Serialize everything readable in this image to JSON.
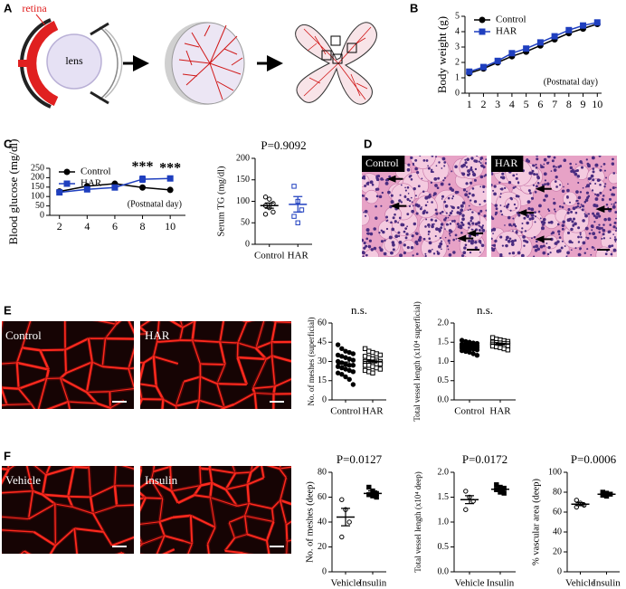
{
  "panel_labels": [
    "A",
    "B",
    "C",
    "D",
    "E",
    "F"
  ],
  "diagram": {
    "retina": "retina",
    "lens": "lens"
  },
  "images": {
    "D": [
      "Control",
      "HAR"
    ],
    "E": [
      "Control",
      "HAR"
    ],
    "F": [
      "Vehicle",
      "Insulin"
    ]
  },
  "chart_data": [
    {
      "type": "line",
      "ylabel": "Body weight (g)",
      "xlabel": "(Postnatal day)",
      "x": [
        1,
        2,
        3,
        4,
        5,
        6,
        7,
        8,
        9,
        10
      ],
      "xlim": [
        0.7,
        10.3
      ],
      "xticks": [
        1,
        2,
        3,
        4,
        5,
        6,
        7,
        8,
        9,
        10
      ],
      "ylim": [
        0,
        5
      ],
      "yticks": [
        0,
        1,
        2,
        3,
        4,
        5
      ],
      "legend": "upper left",
      "series": [
        {
          "name": "Control",
          "color": "#000000",
          "marker": "circle-filled",
          "values": [
            1.3,
            1.6,
            2.0,
            2.4,
            2.7,
            3.1,
            3.5,
            3.9,
            4.2,
            4.5
          ]
        },
        {
          "name": "HAR",
          "color": "#1f3fbf",
          "marker": "square-filled",
          "values": [
            1.4,
            1.7,
            2.1,
            2.6,
            2.9,
            3.3,
            3.7,
            4.1,
            4.4,
            4.6
          ]
        }
      ]
    },
    {
      "type": "line",
      "ylabel": "Blood glucose (mg/dl)",
      "xlabel": "(Postnatal day)",
      "x": [
        2,
        4,
        6,
        8,
        10
      ],
      "xlim": [
        1.3,
        11.1
      ],
      "xticks": [
        2,
        4,
        6,
        8,
        10
      ],
      "ylim": [
        0,
        250
      ],
      "yticks": [
        0,
        50,
        100,
        150,
        200,
        250
      ],
      "legend": "upper left",
      "series": [
        {
          "name": "Control",
          "color": "#000000",
          "marker": "circle-filled",
          "values": [
            127,
            155,
            168,
            148,
            135
          ],
          "errors": [
            4,
            4,
            3,
            3,
            3
          ]
        },
        {
          "name": "HAR",
          "color": "#1f3fbf",
          "marker": "square-filled",
          "values": [
            122,
            138,
            148,
            192,
            196
          ],
          "errors": [
            4,
            5,
            4,
            17,
            6
          ]
        }
      ],
      "annotations": [
        {
          "text": "***",
          "x": 8
        },
        {
          "text": "***",
          "x": 10
        }
      ]
    },
    {
      "type": "dot",
      "title": "P=0.9092",
      "ylabel": "Serum TG (mg/dl)",
      "categories": [
        "Control",
        "HAR"
      ],
      "ylim": [
        0,
        200
      ],
      "yticks": [
        0,
        50,
        100,
        150,
        200
      ],
      "markers": [
        "circle-open",
        "square-open"
      ],
      "colors": [
        "#000000",
        "#1f3fbf"
      ],
      "points": [
        [
          110,
          105,
          95,
          90,
          85,
          75,
          70
        ],
        [
          135,
          100,
          80,
          65,
          50
        ]
      ],
      "means": [
        90,
        93
      ],
      "sems": [
        6,
        18
      ]
    },
    {
      "type": "dot",
      "title": "n.s.",
      "ylabel": "No. of meshes (superficial)",
      "categories": [
        "Control",
        "HAR"
      ],
      "ylim": [
        0,
        60
      ],
      "yticks": [
        0,
        15,
        30,
        45,
        60
      ],
      "markers": [
        "circle-filled",
        "square-open"
      ],
      "colors": [
        "#000000",
        "#000000"
      ],
      "points": [
        [
          43,
          40,
          38,
          37,
          36,
          35,
          34,
          33,
          32,
          31,
          30,
          29,
          28,
          27,
          27,
          26,
          25,
          24,
          23,
          22,
          21,
          20,
          18,
          16,
          12
        ],
        [
          40,
          38,
          37,
          36,
          35,
          34,
          33,
          32,
          31,
          30,
          30,
          29,
          29,
          28,
          28,
          27,
          27,
          26,
          25,
          24,
          23,
          22,
          21
        ]
      ],
      "means": [
        28,
        30
      ],
      "sems": [
        1.6,
        1.1
      ]
    },
    {
      "type": "dot",
      "title": "n.s.",
      "ylabel": "Total vessel length (x10⁴ superficial)",
      "categories": [
        "Control",
        "HAR"
      ],
      "ylim": [
        0,
        2
      ],
      "yticks": [
        {
          "value": 0,
          "label": "0.0"
        },
        0.5,
        {
          "value": 1,
          "label": "1.0"
        },
        1.5,
        {
          "value": 2,
          "label": "2.0"
        }
      ],
      "markers": [
        "circle-filled",
        "square-open"
      ],
      "colors": [
        "#000000",
        "#000000"
      ],
      "points": [
        [
          1.55,
          1.52,
          1.5,
          1.48,
          1.47,
          1.45,
          1.44,
          1.43,
          1.42,
          1.41,
          1.4,
          1.39,
          1.38,
          1.37,
          1.36,
          1.35,
          1.34,
          1.33,
          1.32,
          1.3,
          1.28,
          1.26,
          1.24,
          1.2,
          1.16
        ],
        [
          1.62,
          1.58,
          1.56,
          1.54,
          1.52,
          1.5,
          1.49,
          1.48,
          1.47,
          1.46,
          1.45,
          1.44,
          1.43,
          1.42,
          1.41,
          1.4,
          1.38,
          1.36,
          1.33,
          1.3
        ]
      ],
      "means": [
        1.38,
        1.45
      ],
      "sems": [
        0.02,
        0.02
      ]
    },
    {
      "type": "dot",
      "title": "P=0.0127",
      "ylabel": "No. of meshes (deep)",
      "categories": [
        "Vehicle",
        "Insulin"
      ],
      "ylim": [
        0,
        80
      ],
      "yticks": [
        0,
        20,
        40,
        60,
        80
      ],
      "markers": [
        "circle-open",
        "square-filled"
      ],
      "colors": [
        "#000000",
        "#000000"
      ],
      "points": [
        [
          58,
          50,
          40,
          28
        ],
        [
          68,
          65,
          63,
          62,
          61,
          60
        ]
      ],
      "means": [
        44,
        63
      ],
      "sems": [
        7,
        2
      ]
    },
    {
      "type": "dot",
      "title": "P=0.0172",
      "ylabel": "Total vessel length (x10⁴ deep)",
      "categories": [
        "Vehicle",
        "Insulin"
      ],
      "ylim": [
        0,
        2
      ],
      "yticks": [
        {
          "value": 0,
          "label": "0.0"
        },
        0.5,
        {
          "value": 1,
          "label": "1.0"
        },
        1.5,
        {
          "value": 2,
          "label": "2.0"
        }
      ],
      "markers": [
        "circle-open",
        "square-filled"
      ],
      "colors": [
        "#000000",
        "#000000"
      ],
      "points": [
        [
          1.62,
          1.5,
          1.42,
          1.25
        ],
        [
          1.75,
          1.7,
          1.68,
          1.65,
          1.6,
          1.58
        ]
      ],
      "means": [
        1.45,
        1.66
      ],
      "sems": [
        0.08,
        0.03
      ]
    },
    {
      "type": "dot",
      "title": "P=0.0006",
      "ylabel": "% vascular area (deep)",
      "categories": [
        "Vehicle",
        "Insulin"
      ],
      "ylim": [
        0,
        100
      ],
      "yticks": [
        0,
        20,
        40,
        60,
        80,
        100
      ],
      "markers": [
        "circle-open",
        "square-filled"
      ],
      "colors": [
        "#000000",
        "#000000"
      ],
      "points": [
        [
          72,
          69,
          67,
          65
        ],
        [
          80,
          79,
          78,
          77,
          76
        ]
      ],
      "means": [
        68,
        78
      ],
      "sems": [
        1.5,
        1
      ]
    }
  ]
}
